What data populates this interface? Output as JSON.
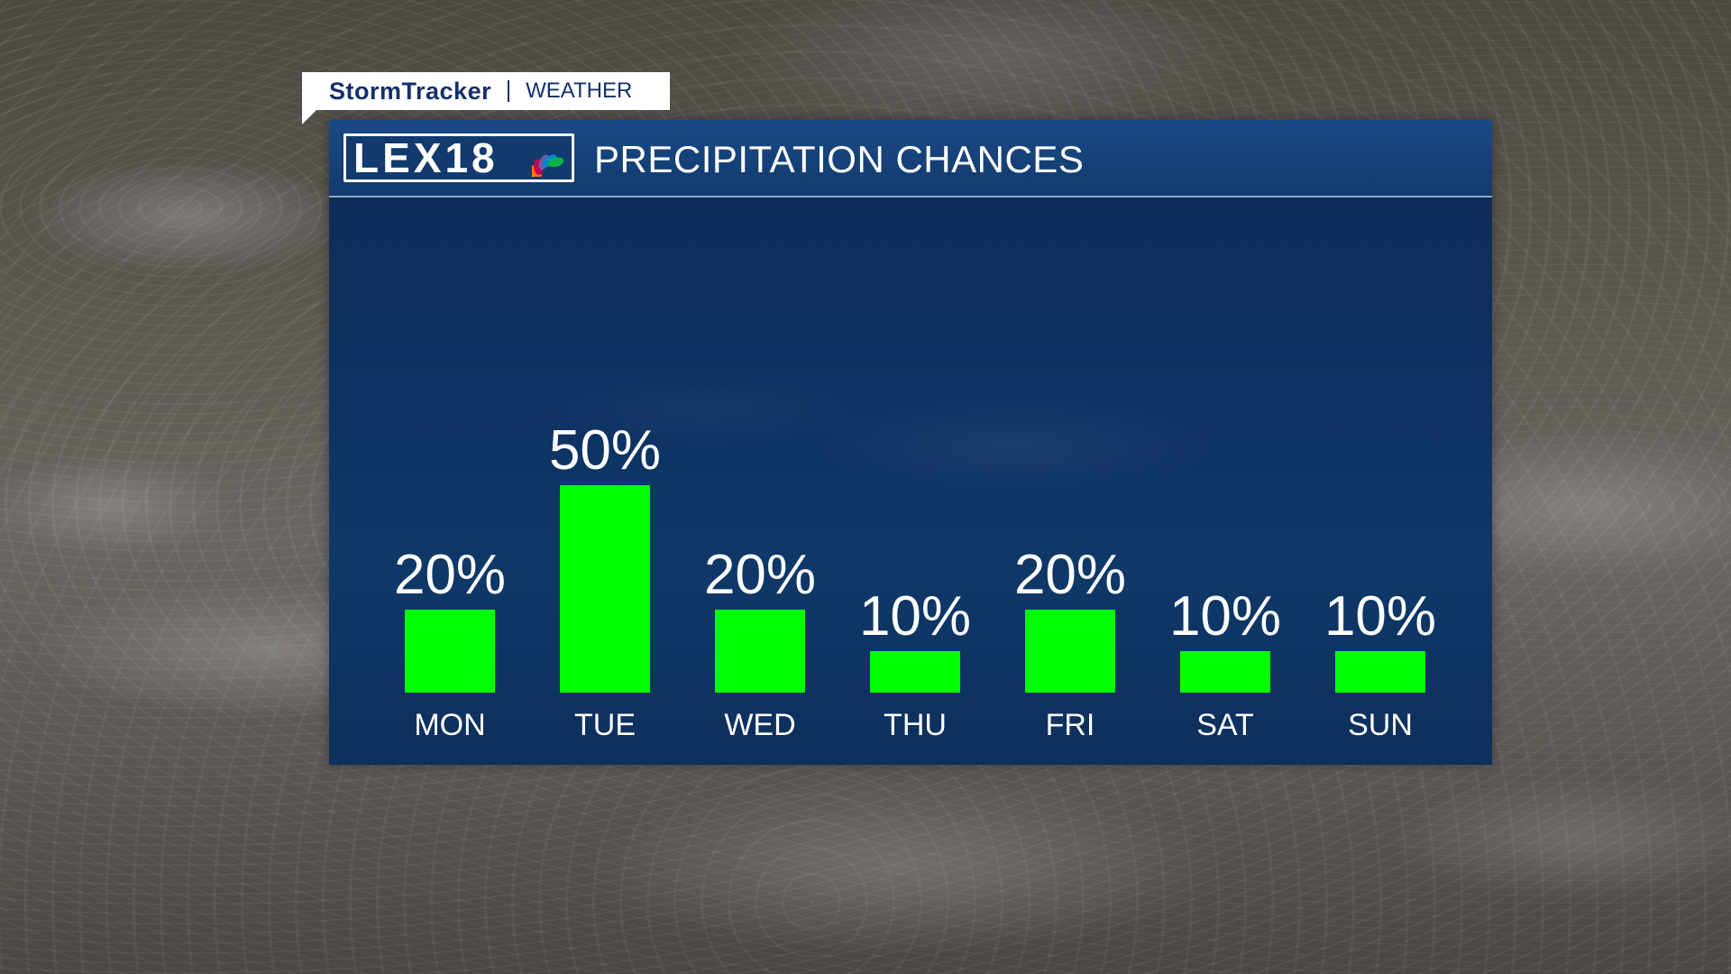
{
  "tag": {
    "brand": "StormTracker",
    "section": "WEATHER"
  },
  "logo": {
    "text": "LEX18"
  },
  "chart_data": {
    "type": "bar",
    "title": "PRECIPITATION CHANCES",
    "categories": [
      "MON",
      "TUE",
      "WED",
      "THU",
      "FRI",
      "SAT",
      "SUN"
    ],
    "values": [
      20,
      50,
      20,
      10,
      20,
      10,
      10
    ],
    "value_labels": [
      "20%",
      "50%",
      "20%",
      "10%",
      "20%",
      "10%",
      "10%"
    ],
    "unit": "%",
    "ylim": [
      0,
      50
    ],
    "grid": false,
    "legend": "none",
    "bar_color": "#00ff00"
  },
  "colors": {
    "panel": "#0e3161",
    "header": "#1a4a85",
    "brand_text": "#14306a",
    "bars": "#00ff00",
    "text": "#ffffff"
  }
}
